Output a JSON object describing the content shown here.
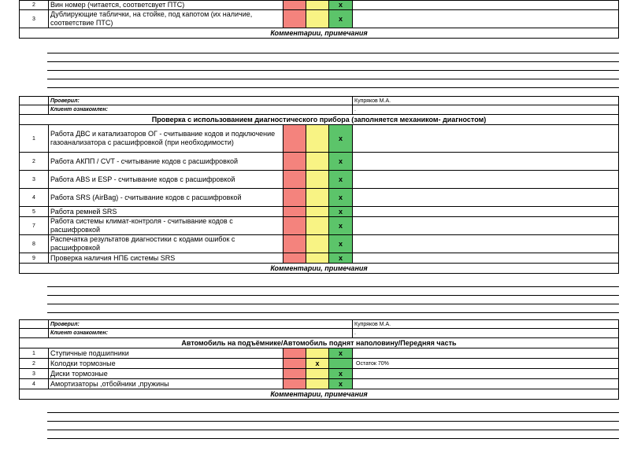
{
  "section1": {
    "items": [
      {
        "num": "2",
        "text": "Вин номер (читается, соответсвует ПТС)",
        "mark": "x",
        "mark_col": "green"
      },
      {
        "num": "3",
        "text": "Дублирующие таблички, на стойке, под капотом (их наличие, соответствие ПТС)",
        "mark": "x",
        "mark_col": "green"
      }
    ],
    "comments_title": "Комментарии, примечания",
    "checked_label": "Проверил:",
    "checked_value": "Купряков М.А.",
    "client_label": "Клиент ознакомлен:",
    "client_value": "."
  },
  "section2": {
    "title": "Проверка с использованием диагностического прибора (заполняется механиком- диагностом)",
    "items": [
      {
        "num": "1",
        "text": "Работа ДВС и катализаторов ОГ - считывание кодов и подключение газоанализатора с расшифровкой (при необходимости)",
        "mark": "x"
      },
      {
        "num": "2",
        "text": "Работа АКПП / CVT - считывание кодов с расшифровкой",
        "mark": "x"
      },
      {
        "num": "3",
        "text": "Работа ABS и ESP - считывание кодов с расшифровкой",
        "mark": "x"
      },
      {
        "num": "4",
        "text": "Работа SRS (AirBag) - считывание кодов с расшифровкой",
        "mark": "x"
      },
      {
        "num": "5",
        "text": "Работа ремней SRS",
        "mark": "x"
      },
      {
        "num": "7",
        "text": "Работа системы климат-контроля - считывание кодов с расшифровкой",
        "mark": "x"
      },
      {
        "num": "8",
        "text": "Распечатка результатов диагностики с кодами ошибок с расшифровкой",
        "mark": "x"
      },
      {
        "num": "9",
        "text": "Проверка наличия НПБ системы SRS",
        "mark": "x"
      }
    ],
    "comments_title": "Комментарии, примечания",
    "checked_label": "Проверил:",
    "checked_value": "Купряков М.А.",
    "client_label": "Клиент ознакомлен:",
    "client_value": "."
  },
  "section3": {
    "title": "Автомобиль на подъёмнике/Автомобиль поднят наполовину/Передняя часть",
    "items": [
      {
        "num": "1",
        "text": "Ступичные подшипники",
        "mark": "x",
        "col": "green",
        "note": ""
      },
      {
        "num": "2",
        "text": "Колодки тормозные",
        "mark": "x",
        "col": "yellow",
        "note": "Остаток 70%"
      },
      {
        "num": "3",
        "text": "Диски тормозные",
        "mark": "x",
        "col": "green",
        "note": ""
      },
      {
        "num": "4",
        "text": "Амортизаторы ,отбойники ,пружины",
        "mark": "x",
        "col": "green",
        "note": ""
      }
    ],
    "comments_title": "Комментарии, примечания"
  }
}
